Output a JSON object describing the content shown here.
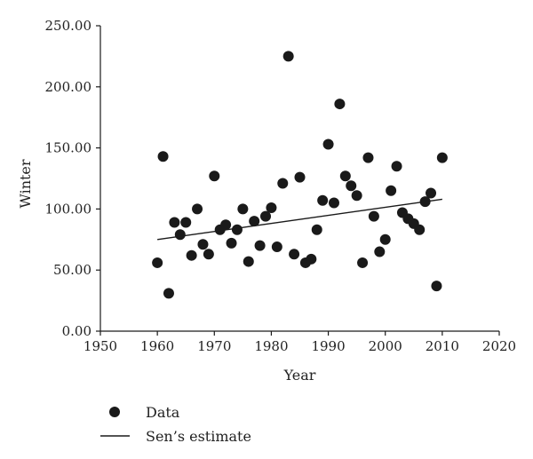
{
  "chart_data": {
    "type": "scatter",
    "xlabel": "Year",
    "ylabel": "Winter",
    "xlim": [
      1950,
      2020
    ],
    "ylim": [
      0,
      250
    ],
    "x_ticks": [
      "1950",
      "1960",
      "1970",
      "1980",
      "1990",
      "2000",
      "2010",
      "2020"
    ],
    "y_ticks": [
      "0.00",
      "50.00",
      "100.00",
      "150.00",
      "200.00",
      "250.00"
    ],
    "x_tick_values": [
      1950,
      1960,
      1970,
      1980,
      1990,
      2000,
      2010,
      2020
    ],
    "y_tick_values": [
      0,
      50,
      100,
      150,
      200,
      250
    ],
    "grid": false,
    "legend_position": "bottom-left",
    "series": [
      {
        "name": "Data",
        "kind": "points",
        "color": "#1a1a1a",
        "points": [
          [
            1960,
            56
          ],
          [
            1961,
            143
          ],
          [
            1962,
            31
          ],
          [
            1963,
            89
          ],
          [
            1964,
            79
          ],
          [
            1965,
            89
          ],
          [
            1966,
            62
          ],
          [
            1967,
            100
          ],
          [
            1968,
            71
          ],
          [
            1969,
            63
          ],
          [
            1970,
            127
          ],
          [
            1971,
            83
          ],
          [
            1972,
            87
          ],
          [
            1973,
            72
          ],
          [
            1974,
            83
          ],
          [
            1975,
            100
          ],
          [
            1976,
            57
          ],
          [
            1977,
            90
          ],
          [
            1978,
            70
          ],
          [
            1979,
            94
          ],
          [
            1980,
            101
          ],
          [
            1981,
            69
          ],
          [
            1982,
            121
          ],
          [
            1983,
            225
          ],
          [
            1984,
            63
          ],
          [
            1985,
            126
          ],
          [
            1986,
            56
          ],
          [
            1987,
            59
          ],
          [
            1988,
            83
          ],
          [
            1989,
            107
          ],
          [
            1990,
            153
          ],
          [
            1991,
            105
          ],
          [
            1992,
            186
          ],
          [
            1993,
            127
          ],
          [
            1994,
            119
          ],
          [
            1995,
            111
          ],
          [
            1996,
            56
          ],
          [
            1997,
            142
          ],
          [
            1998,
            94
          ],
          [
            1999,
            65
          ],
          [
            2000,
            75
          ],
          [
            2001,
            115
          ],
          [
            2002,
            135
          ],
          [
            2003,
            97
          ],
          [
            2004,
            92
          ],
          [
            2005,
            88
          ],
          [
            2006,
            83
          ],
          [
            2007,
            106
          ],
          [
            2008,
            113
          ],
          [
            2009,
            37
          ],
          [
            2010,
            142
          ]
        ]
      },
      {
        "name": "Sen’s estimate",
        "kind": "line",
        "color": "#1a1a1a",
        "points": [
          [
            1960,
            75
          ],
          [
            2010,
            108
          ]
        ]
      }
    ]
  }
}
